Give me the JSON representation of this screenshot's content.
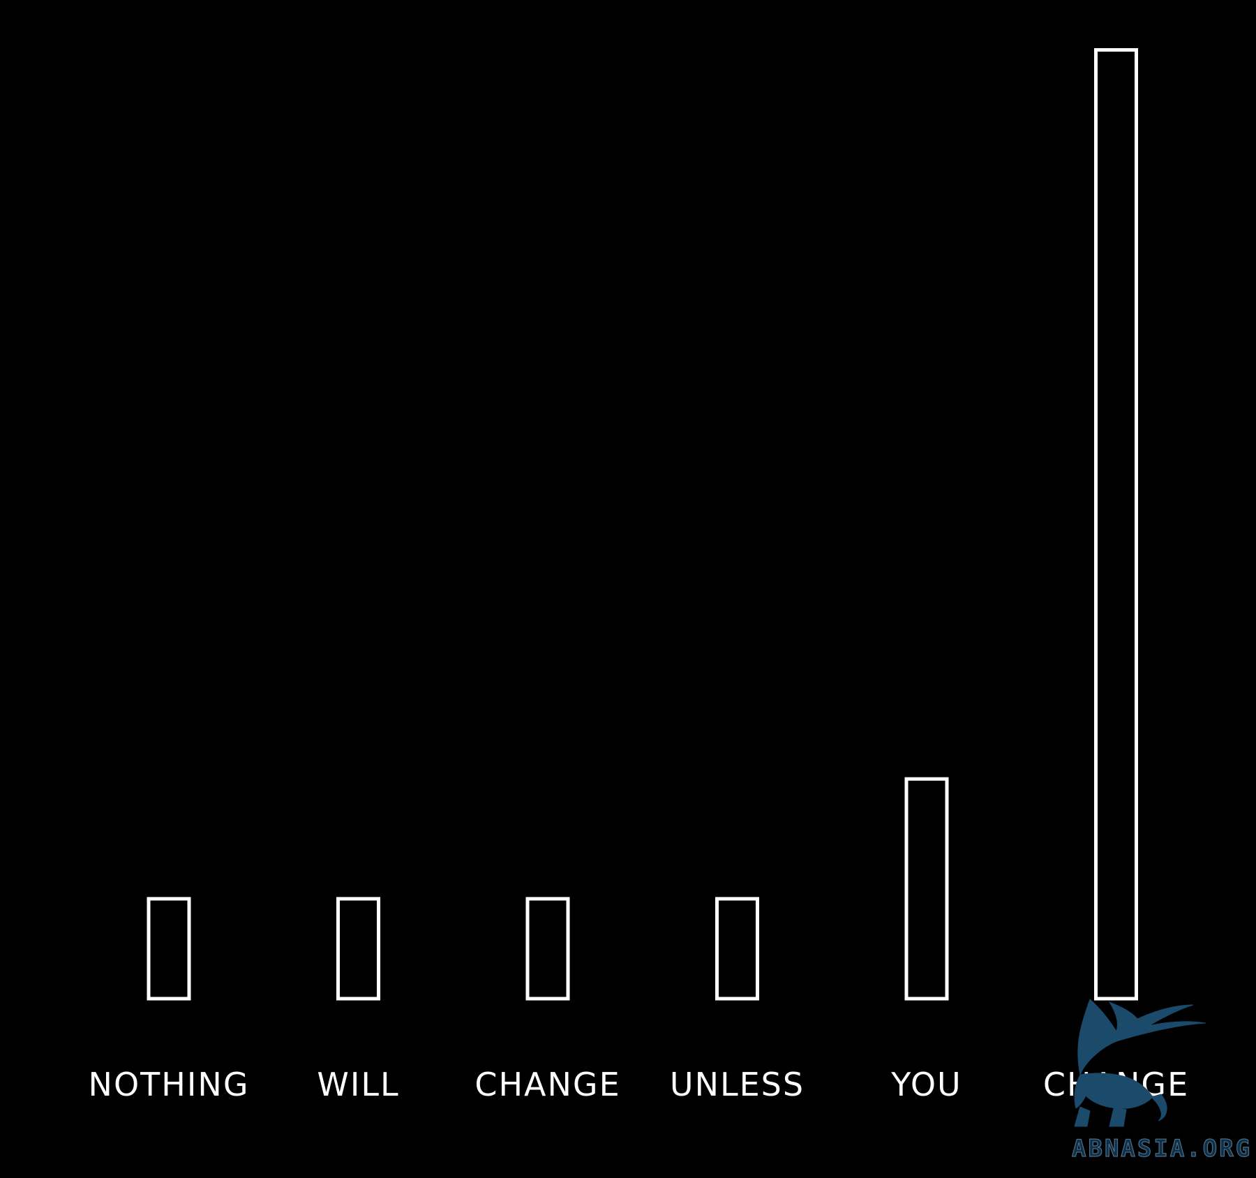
{
  "chart_data": {
    "type": "bar",
    "categories": [
      "NOTHING",
      "WILL",
      "CHANGE",
      "UNLESS",
      "YOU",
      "CHANGE"
    ],
    "values": [
      1,
      1,
      1,
      1,
      2.2,
      9.5
    ],
    "title": "",
    "xlabel": "",
    "ylabel": "",
    "ylim": [
      0,
      10
    ],
    "grid": false,
    "axes_visible": false,
    "bar_style": "outline",
    "colors": {
      "background": "#000000",
      "bar_stroke": "#ffffff",
      "label": "#ffffff"
    }
  },
  "watermark": {
    "text": "ABNASIA.ORG",
    "icon": "griffin-logo-icon",
    "color": "#1b4a6b"
  }
}
